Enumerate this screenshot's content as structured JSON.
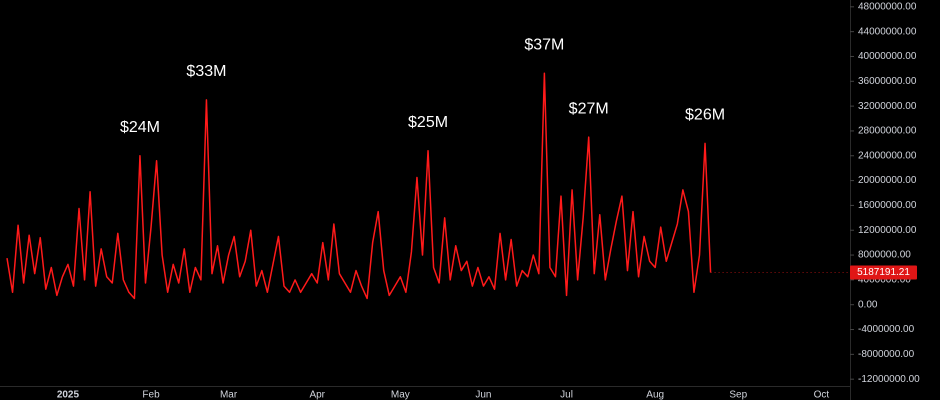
{
  "chart_data": {
    "type": "line",
    "categories": [
      null,
      null,
      null,
      null,
      null,
      null,
      null,
      null,
      null,
      null,
      null,
      "2025",
      null,
      null,
      null,
      null,
      null,
      null,
      null,
      null,
      null,
      null,
      null,
      null,
      null,
      null,
      "Feb",
      null,
      null,
      null,
      null,
      null,
      null,
      null,
      null,
      null,
      null,
      null,
      null,
      null,
      "Mar",
      null,
      null,
      null,
      null,
      null,
      null,
      null,
      null,
      null,
      null,
      null,
      null,
      null,
      null,
      null,
      "Apr",
      null,
      null,
      null,
      null,
      null,
      null,
      null,
      null,
      null,
      null,
      null,
      null,
      null,
      null,
      "May",
      null,
      null,
      null,
      null,
      null,
      null,
      null,
      null,
      null,
      null,
      null,
      null,
      null,
      null,
      "Jun",
      null,
      null,
      null,
      null,
      null,
      null,
      null,
      null,
      null,
      null,
      null,
      null,
      null,
      null,
      "Jul",
      null,
      null,
      null,
      null,
      null,
      null,
      null,
      null,
      null,
      null,
      null,
      null,
      null,
      null,
      null,
      "Aug",
      null,
      null,
      null,
      null,
      null,
      null,
      null,
      null,
      null,
      null,
      null,
      null,
      null,
      null,
      "Sep",
      null,
      null,
      null,
      null,
      null,
      null,
      null,
      null,
      null,
      null,
      null,
      null,
      null,
      null,
      "Oct",
      null,
      null
    ],
    "series": [
      {
        "color": "#ff1a1a",
        "values": [
          7500000,
          2000000,
          12800000,
          3500000,
          11200000,
          5000000,
          10800000,
          2500000,
          6000000,
          1500000,
          4500000,
          6500000,
          3000000,
          15500000,
          4000000,
          18200000,
          3000000,
          9000000,
          4500000,
          3500000,
          11500000,
          4000000,
          2000000,
          1000000,
          24000000,
          3500000,
          12500000,
          23200000,
          8000000,
          2000000,
          6500000,
          3500000,
          9000000,
          2000000,
          6000000,
          4000000,
          33000000,
          5000000,
          9500000,
          3500000,
          8000000,
          11000000,
          4500000,
          7000000,
          12000000,
          3000000,
          5500000,
          2000000,
          6500000,
          11000000,
          3000000,
          2000000,
          4000000,
          2000000,
          3500000,
          5000000,
          3500000,
          10000000,
          4000000,
          13000000,
          5000000,
          3500000,
          2000000,
          5500000,
          3000000,
          1000000,
          10000000,
          15000000,
          5500000,
          1500000,
          3000000,
          4500000,
          2000000,
          8500000,
          20500000,
          8000000,
          24800000,
          6000000,
          3500000,
          14000000,
          4000000,
          9500000,
          5500000,
          7000000,
          3000000,
          6000000,
          3000000,
          4500000,
          2500000,
          11500000,
          4000000,
          10500000,
          3000000,
          5500000,
          4500000,
          8000000,
          5000000,
          37300000,
          6000000,
          4500000,
          17500000,
          1500000,
          18500000,
          4000000,
          14000000,
          27000000,
          5000000,
          14500000,
          4000000,
          9000000,
          13500000,
          17500000,
          5500000,
          15000000,
          4500000,
          11000000,
          7000000,
          6000000,
          12500000,
          7000000,
          10000000,
          13000000,
          18500000,
          15000000,
          2000000,
          8000000,
          26000000,
          5187191.21,
          null,
          null,
          null,
          null,
          null,
          null,
          null,
          null,
          null,
          null,
          null,
          null,
          null,
          null,
          null,
          null,
          null,
          null,
          null,
          null,
          null,
          null
        ]
      }
    ],
    "annotations": [
      {
        "label": "$24M",
        "value": 24000000
      },
      {
        "label": "$33M",
        "value": 33000000
      },
      {
        "label": "$25M",
        "value": 24800000
      },
      {
        "label": "$37M",
        "value": 37300000
      },
      {
        "label": "$27M",
        "value": 27000000
      },
      {
        "label": "$26M",
        "value": 26000000
      }
    ],
    "ylim": [
      -13100000,
      49100000
    ],
    "yticks": [
      {
        "value": 48000000,
        "label": "48000000.00"
      },
      {
        "value": 44000000,
        "label": "44000000.00"
      },
      {
        "value": 40000000,
        "label": "40000000.00"
      },
      {
        "value": 36000000,
        "label": "36000000.00"
      },
      {
        "value": 32000000,
        "label": "32000000.00"
      },
      {
        "value": 28000000,
        "label": "28000000.00"
      },
      {
        "value": 24000000,
        "label": "24000000.00"
      },
      {
        "value": 20000000,
        "label": "20000000.00"
      },
      {
        "value": 16000000,
        "label": "16000000.00"
      },
      {
        "value": 12000000,
        "label": "12000000.00"
      },
      {
        "value": 8000000,
        "label": "8000000.00"
      },
      {
        "value": 4000000,
        "label": "4000000.00"
      },
      {
        "value": 0,
        "label": "0.00"
      },
      {
        "value": -4000000,
        "label": "-4000000.00"
      },
      {
        "value": -8000000,
        "label": "-8000000.00"
      },
      {
        "value": -12000000,
        "label": "-12000000.00"
      }
    ],
    "grid": false
  }
}
